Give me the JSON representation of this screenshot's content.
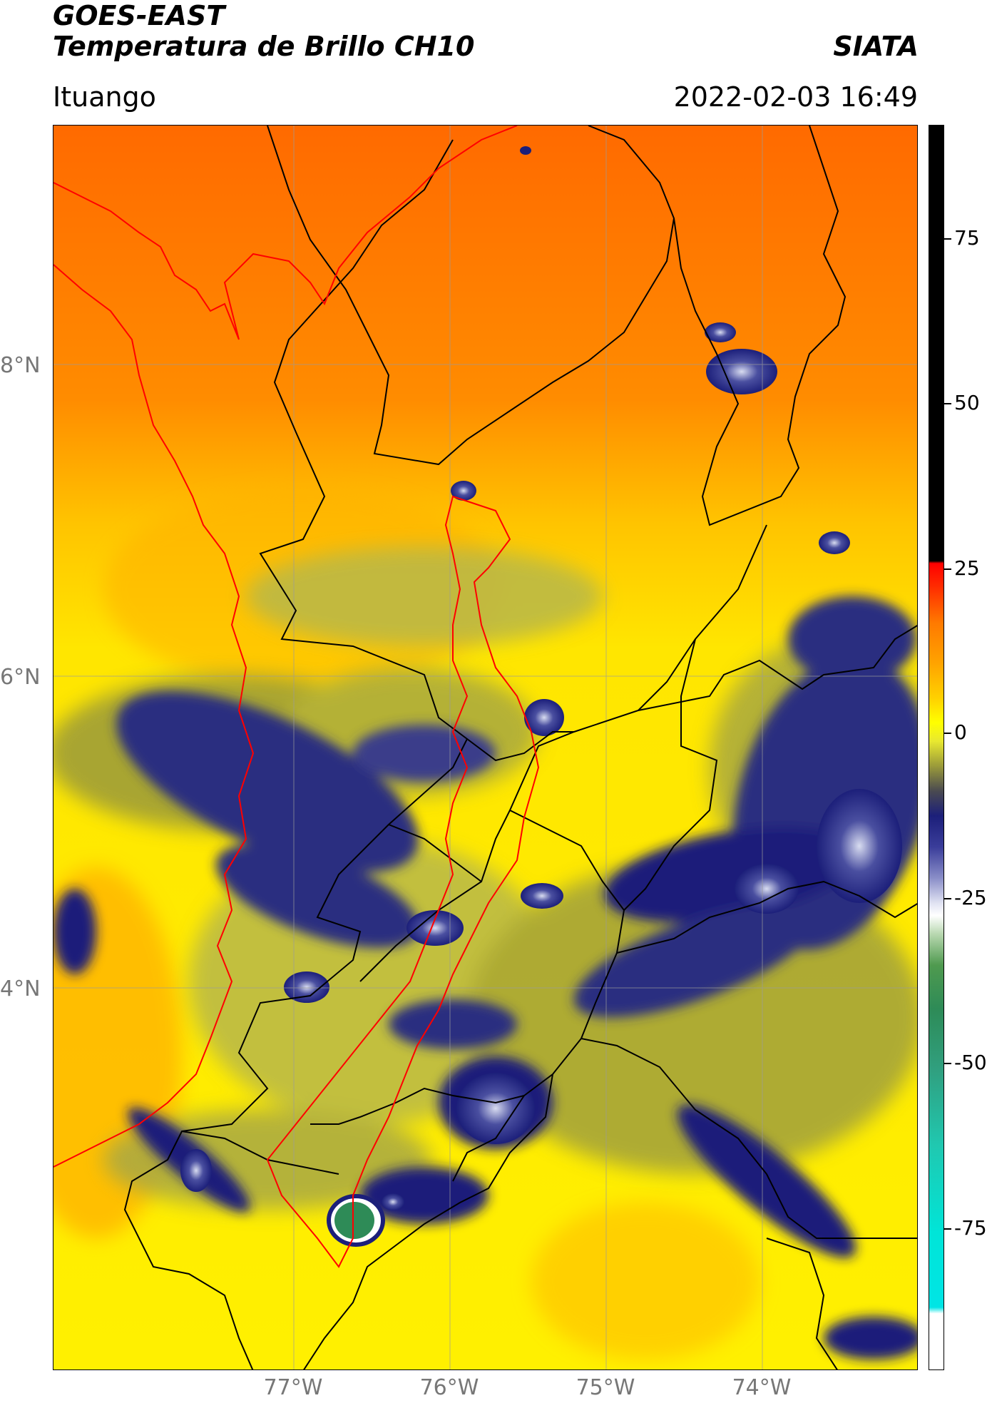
{
  "header": {
    "line1": "GOES-EAST",
    "line2": "Temperatura de Brillo CH10",
    "brand": "SIATA",
    "region": "Ituango",
    "datetime": "2022-02-03 16:49"
  },
  "map": {
    "lat_labels": [
      "8°N",
      "6°N",
      "4°N"
    ],
    "lon_labels": [
      "77°W",
      "76°W",
      "75°W",
      "74°W"
    ],
    "colors": {
      "red_boundary": "#ff0000",
      "black_boundary": "#000000",
      "warm": "#ff7a00",
      "mid": "#ffd800",
      "olive": "#b8b84a",
      "navy": "#1c1f7a",
      "white": "#ffffff",
      "green": "#2e8b57"
    }
  },
  "colorbar": {
    "labels": [
      "75",
      "50",
      "25",
      "0",
      "-25",
      "-50",
      "-75"
    ],
    "range": [
      -87,
      90
    ]
  }
}
